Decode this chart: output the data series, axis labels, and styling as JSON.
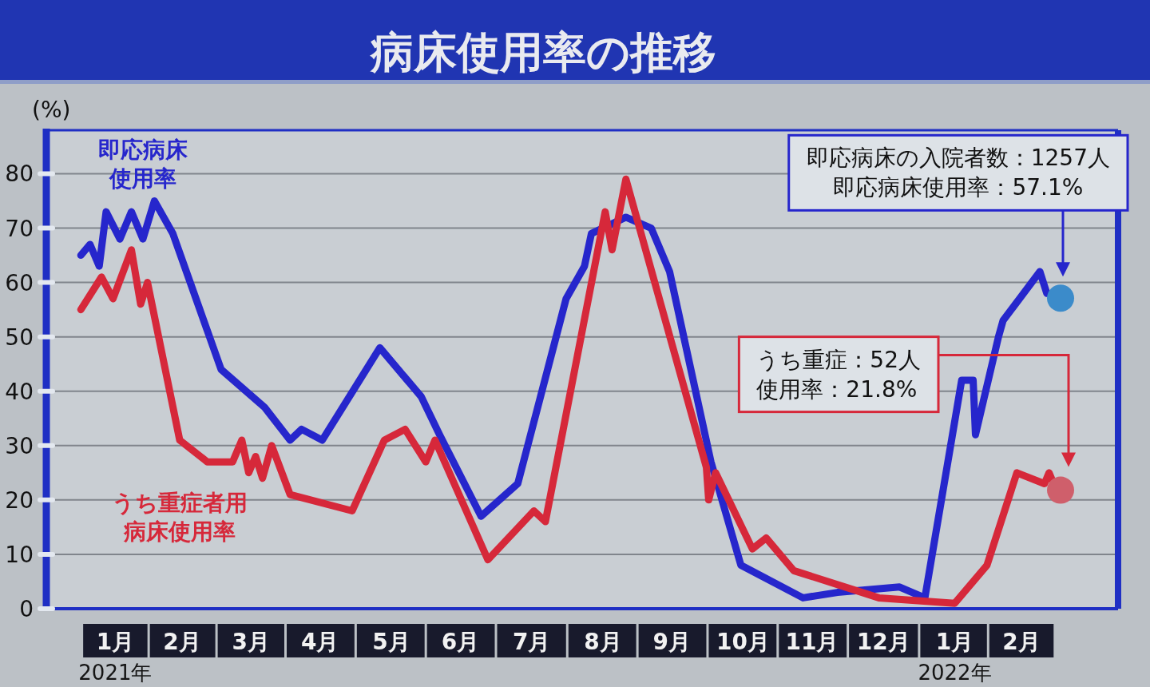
{
  "chart_data": {
    "type": "line",
    "title": "病床使用率の推移",
    "ylabel": "(%)",
    "xlim": [
      "2020-12-17",
      "2022-03-28"
    ],
    "xticks": [
      {
        "value": "2021-01-16",
        "label": "1月\n2021年"
      },
      {
        "value": "2021-02-14",
        "label": "2月"
      },
      {
        "value": "2021-03-16",
        "label": "3月"
      },
      {
        "value": "2021-04-15",
        "label": "4月"
      },
      {
        "value": "2021-05-16",
        "label": "5月"
      },
      {
        "value": "2021-06-15",
        "label": "6月"
      },
      {
        "value": "2021-07-16",
        "label": "7月"
      },
      {
        "value": "2021-08-16",
        "label": "8月"
      },
      {
        "value": "2021-09-15",
        "label": "9月"
      },
      {
        "value": "2021-10-16",
        "label": "10月"
      },
      {
        "value": "2021-11-15",
        "label": "11月"
      },
      {
        "value": "2021-12-16",
        "label": "12月"
      },
      {
        "value": "2022-01-16",
        "label": "1月\n2022年"
      },
      {
        "value": "2022-02-14",
        "label": "2月"
      }
    ],
    "ylim": [
      0,
      88
    ],
    "yticks": [
      0,
      10,
      20,
      30,
      40,
      50,
      60,
      70,
      80
    ],
    "grid": "y",
    "series": [
      {
        "name": "即応病床使用率",
        "color": "#2626cc",
        "x": [
          "2021-01-01",
          "2021-01-05",
          "2021-01-09",
          "2021-01-12",
          "2021-01-18",
          "2021-01-23",
          "2021-01-28",
          "2021-02-02",
          "2021-02-10",
          "2021-03-03",
          "2021-03-22",
          "2021-04-02",
          "2021-04-07",
          "2021-04-16",
          "2021-05-11",
          "2021-05-29",
          "2021-06-06",
          "2021-06-24",
          "2021-07-10",
          "2021-07-31",
          "2021-08-08",
          "2021-08-11",
          "2021-08-26",
          "2021-09-06",
          "2021-09-14",
          "2021-10-02",
          "2021-10-15",
          "2021-11-11",
          "2021-11-26",
          "2021-12-23",
          "2022-01-03",
          "2022-01-19",
          "2022-01-24",
          "2022-01-25",
          "2022-02-04",
          "2022-02-06",
          "2022-02-22",
          "2022-02-25"
        ],
        "values": [
          65,
          67,
          63,
          73,
          68,
          73,
          68,
          75,
          69,
          44,
          37,
          31,
          33,
          31,
          48,
          39,
          32,
          17,
          23,
          57,
          63,
          69,
          72,
          70,
          62,
          27,
          8,
          2,
          3,
          4,
          2,
          42,
          42,
          32,
          50,
          53,
          62,
          58
        ]
      },
      {
        "name": "うち重症者用病床使用率",
        "color": "#d6283a",
        "x": [
          "2021-01-01",
          "2021-01-10",
          "2021-01-15",
          "2021-01-23",
          "2021-01-27",
          "2021-01-30",
          "2021-02-13",
          "2021-02-25",
          "2021-03-08",
          "2021-03-12",
          "2021-03-15",
          "2021-03-18",
          "2021-03-21",
          "2021-03-25",
          "2021-04-02",
          "2021-04-29",
          "2021-05-13",
          "2021-05-22",
          "2021-05-31",
          "2021-06-04",
          "2021-06-27",
          "2021-07-17",
          "2021-07-22",
          "2021-08-17",
          "2021-08-20",
          "2021-08-26",
          "2021-09-30",
          "2021-10-01",
          "2021-10-04",
          "2021-10-20",
          "2021-10-26",
          "2021-11-07",
          "2021-12-14",
          "2022-01-16",
          "2022-01-30",
          "2022-02-12",
          "2022-02-24",
          "2022-02-26",
          "2022-02-28"
        ],
        "values": [
          55,
          61,
          57,
          66,
          56,
          60,
          31,
          27,
          27,
          31,
          25,
          28,
          24,
          30,
          21,
          18,
          31,
          33,
          27,
          31,
          9,
          18,
          16,
          73,
          66,
          79,
          26,
          20,
          25,
          11,
          13,
          7,
          2,
          1,
          8,
          25,
          23,
          25,
          23
        ]
      },
      {
        "type": "scatter",
        "marker": "circle",
        "color": "#3b8bca",
        "x": [
          "2022-03-03"
        ],
        "values": [
          57.1
        ]
      },
      {
        "type": "scatter",
        "marker": "circle",
        "color": "#cf5f6b",
        "x": [
          "2022-03-03"
        ],
        "values": [
          21.8
        ]
      }
    ],
    "annotations": [
      "即応病床の入院者数：1257人",
      "即応病床使用率：57.1%",
      "うち重症：52人",
      "使用率：21.8%"
    ]
  }
}
